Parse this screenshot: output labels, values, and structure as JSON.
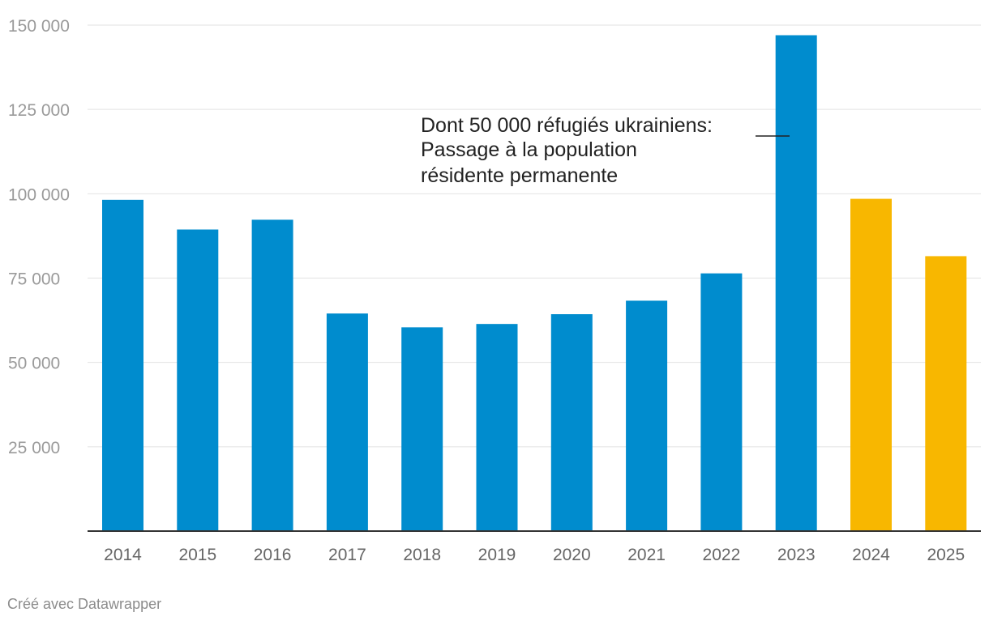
{
  "chart_data": {
    "type": "bar",
    "categories": [
      "2014",
      "2015",
      "2016",
      "2017",
      "2018",
      "2019",
      "2020",
      "2021",
      "2022",
      "2023",
      "2024",
      "2025"
    ],
    "values": [
      98200,
      89400,
      92300,
      64500,
      60400,
      61400,
      64300,
      68300,
      76400,
      147000,
      98500,
      81500
    ],
    "colors": [
      "#008cce",
      "#008cce",
      "#008cce",
      "#008cce",
      "#008cce",
      "#008cce",
      "#008cce",
      "#008cce",
      "#008cce",
      "#008cce",
      "#f8b700",
      "#f8b700"
    ],
    "ylim": [
      0,
      150000
    ],
    "yticks": [
      25000,
      50000,
      75000,
      100000,
      125000,
      150000
    ],
    "ytick_labels": [
      "25 000",
      "50 000",
      "75 000",
      "100 000",
      "125 000",
      "150 000"
    ],
    "grid": true,
    "annotation": {
      "lines": [
        "Dont 50 000 réfugiés ukrainiens:",
        "Passage à la population",
        "résidente permanente"
      ],
      "target_category": "2023"
    }
  },
  "footer": {
    "credit": "Créé avec Datawrapper"
  }
}
